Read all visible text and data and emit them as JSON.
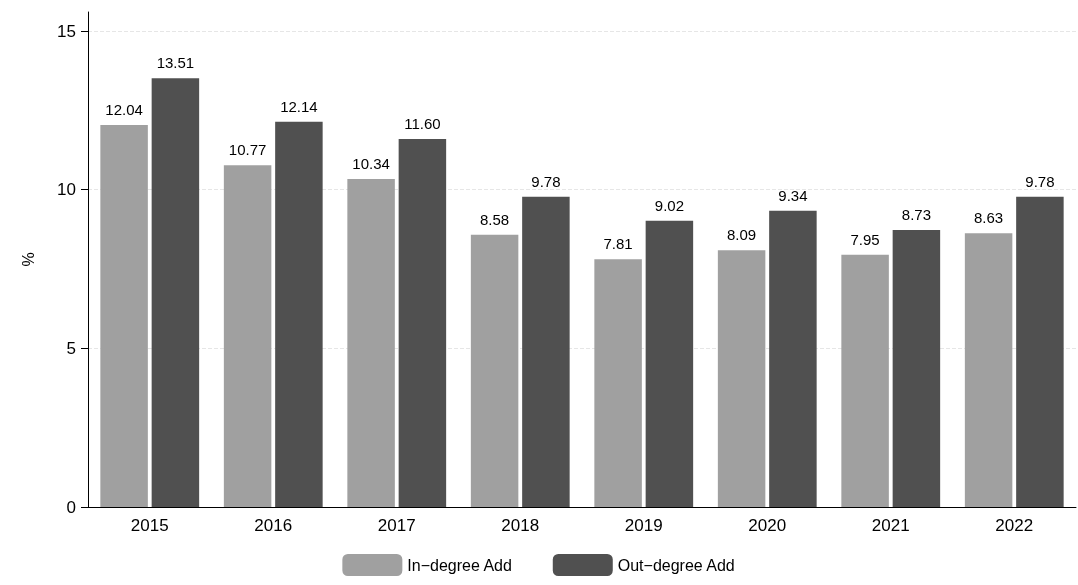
{
  "chart_data": {
    "type": "bar",
    "ylabel": "%",
    "categories": [
      "2015",
      "2016",
      "2017",
      "2018",
      "2019",
      "2020",
      "2021",
      "2022"
    ],
    "series": [
      {
        "name": "In−degree Add",
        "color": "#a0a0a0",
        "values": [
          12.04,
          10.77,
          10.34,
          8.58,
          7.81,
          8.09,
          7.95,
          8.63
        ],
        "value_labels": [
          "12.04",
          "10.77",
          "10.34",
          "8.58",
          "7.81",
          "8.09",
          "7.95",
          "8.63"
        ]
      },
      {
        "name": "Out−degree Add",
        "color": "#505050",
        "values": [
          13.51,
          12.14,
          11.6,
          9.78,
          9.02,
          9.34,
          8.73,
          9.78
        ],
        "value_labels": [
          "13.51",
          "12.14",
          "11.60",
          "9.78",
          "9.02",
          "9.34",
          "8.73",
          "9.78"
        ]
      }
    ],
    "ylim": [
      0,
      15.6
    ],
    "yticks": [
      0,
      5,
      10,
      15
    ],
    "grid": "y",
    "legend": "bottom"
  }
}
